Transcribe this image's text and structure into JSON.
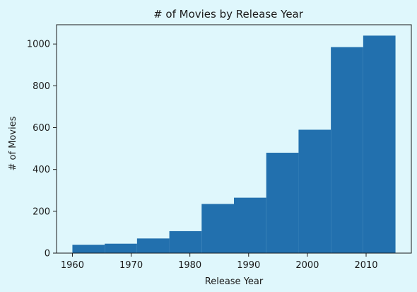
{
  "chart_data": {
    "type": "bar",
    "title": "# of Movies by Release Year",
    "xlabel": "Release Year",
    "ylabel": "# of Movies",
    "xlim": [
      1957.3,
      2017.7
    ],
    "ylim": [
      0,
      1092
    ],
    "x_ticks": [
      1960,
      1970,
      1980,
      1990,
      2000,
      2010
    ],
    "y_ticks": [
      0,
      200,
      400,
      600,
      800,
      1000
    ],
    "grid": false,
    "bins": [
      {
        "start": 1960.0,
        "end": 1965.5,
        "value": 40
      },
      {
        "start": 1965.5,
        "end": 1971.0,
        "value": 45
      },
      {
        "start": 1971.0,
        "end": 1976.5,
        "value": 70
      },
      {
        "start": 1976.5,
        "end": 1982.0,
        "value": 105
      },
      {
        "start": 1982.0,
        "end": 1987.5,
        "value": 235
      },
      {
        "start": 1987.5,
        "end": 1993.0,
        "value": 265
      },
      {
        "start": 1993.0,
        "end": 1998.5,
        "value": 480
      },
      {
        "start": 1998.5,
        "end": 2004.0,
        "value": 590
      },
      {
        "start": 2004.0,
        "end": 2009.5,
        "value": 985
      },
      {
        "start": 2009.5,
        "end": 2015.0,
        "value": 1040
      }
    ],
    "colors": {
      "bar": "#2270ae",
      "axis": "#1a1a1a",
      "background": "#dff7fc"
    }
  }
}
